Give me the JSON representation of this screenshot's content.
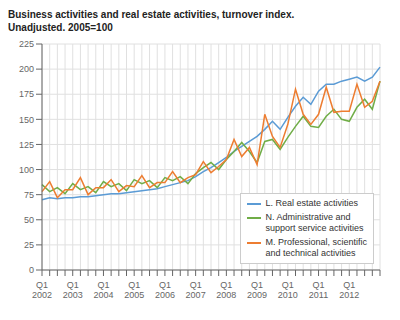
{
  "chart_data": {
    "type": "line",
    "title": "Business activities and real estate activities, turnover index.\nUnadjusted. 2005=100",
    "categories": [
      "Q1\n2002",
      null,
      null,
      null,
      "Q1\n2003",
      null,
      null,
      null,
      "Q1\n2004",
      null,
      null,
      null,
      "Q1\n2005",
      null,
      null,
      null,
      "Q1\n2006",
      null,
      null,
      null,
      "Q1\n2007",
      null,
      null,
      null,
      "Q1\n2008",
      null,
      null,
      null,
      "Q1\n2009",
      null,
      null,
      null,
      "Q1\n2010",
      null,
      null,
      null,
      "Q1\n2011",
      null,
      null,
      null,
      "Q1\n2012",
      null,
      null,
      null,
      null
    ],
    "series": [
      {
        "name": "L. Real estate activities",
        "color": "#5b9bd5",
        "values": [
          70,
          72,
          71,
          72,
          72,
          73,
          73,
          74,
          75,
          76,
          76,
          77,
          78,
          79,
          80,
          81,
          83,
          85,
          87,
          89,
          93,
          98,
          102,
          107,
          112,
          118,
          123,
          128,
          133,
          140,
          148,
          140,
          152,
          163,
          172,
          165,
          178,
          185,
          185,
          188,
          190,
          192,
          188,
          192,
          202
        ]
      },
      {
        "name": "N. Administrative and\nsupport service activities",
        "color": "#70ad47",
        "values": [
          85,
          78,
          82,
          76,
          86,
          80,
          83,
          77,
          88,
          83,
          86,
          79,
          90,
          86,
          89,
          82,
          92,
          89,
          93,
          86,
          96,
          102,
          107,
          100,
          110,
          118,
          127,
          118,
          107,
          128,
          130,
          120,
          132,
          143,
          153,
          143,
          142,
          153,
          160,
          150,
          148,
          162,
          170,
          160,
          188
        ]
      },
      {
        "name": "M. Professional, scientific\nand technical activities",
        "color": "#ed7d31",
        "values": [
          78,
          88,
          72,
          80,
          80,
          92,
          75,
          82,
          82,
          90,
          78,
          84,
          83,
          94,
          82,
          87,
          87,
          98,
          87,
          92,
          95,
          108,
          97,
          103,
          110,
          130,
          113,
          122,
          105,
          155,
          133,
          122,
          145,
          180,
          155,
          145,
          155,
          182,
          157,
          158,
          158,
          185,
          162,
          168,
          188
        ]
      }
    ],
    "ylim": [
      0,
      225
    ],
    "yticks": [
      0,
      25,
      50,
      75,
      100,
      125,
      150,
      175,
      200,
      225
    ],
    "grid": true,
    "legend": "lower right"
  }
}
